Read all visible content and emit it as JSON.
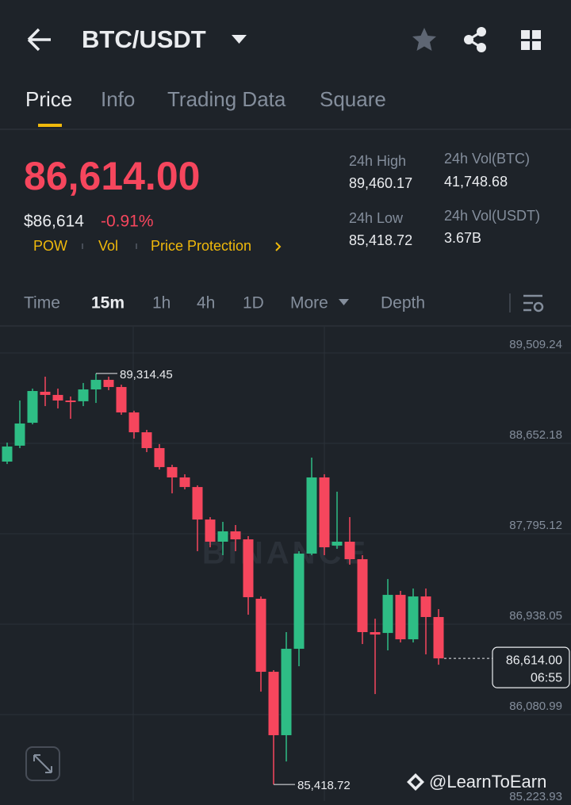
{
  "header": {
    "title": "BTC/USDT"
  },
  "tabs": [
    "Price",
    "Info",
    "Trading Data",
    "Square"
  ],
  "price": {
    "last": "86,614.00",
    "fiat": "$86,614",
    "change": "-0.91%",
    "tags": [
      "POW",
      "Vol",
      "Price Protection"
    ]
  },
  "stats": [
    {
      "label": "24h High",
      "value": "89,460.17"
    },
    {
      "label": "24h Vol(BTC)",
      "value": "41,748.68"
    },
    {
      "label": "24h Low",
      "value": "85,418.72"
    },
    {
      "label": "24h Vol(USDT)",
      "value": "3.67B"
    }
  ],
  "intervals": [
    "Time",
    "15m",
    "1h",
    "4h",
    "1D",
    "More",
    "Depth"
  ],
  "chart_data": {
    "type": "candlestick",
    "open": [
      88479,
      88630,
      88847,
      89141,
      89111,
      89058,
      89051,
      89163,
      89254,
      89186,
      88945,
      88757,
      88607,
      88427,
      88329,
      88238,
      87930,
      87720,
      87818,
      87742,
      87179,
      86487,
      85886,
      86705,
      87607,
      88329,
      87683,
      87720,
      87554,
      86863,
      86855,
      87216,
      86795,
      87201,
      87006
    ],
    "high": [
      88659,
      89058,
      89171,
      89284,
      89171,
      89096,
      89224,
      89314.45,
      89284,
      89208,
      88961,
      88780,
      88645,
      88449,
      88359,
      88254,
      87953,
      87908,
      87878,
      87773,
      87201,
      86502,
      86863,
      87630,
      88517,
      88359,
      88194,
      87953,
      87592,
      86990,
      87366,
      87254,
      87276,
      87276,
      87081
    ],
    "low": [
      88456,
      88607,
      88832,
      89005,
      88983,
      88885,
      89005,
      89035,
      89156,
      88923,
      88697,
      88569,
      88404,
      88178,
      88216,
      87630,
      87667,
      87592,
      87630,
      87028,
      86299,
      85418.72,
      85637,
      86540,
      87592,
      87592,
      87652,
      87502,
      86750,
      86276,
      86690,
      86765,
      86765,
      86652,
      86554
    ],
    "close": [
      88622,
      88840,
      89148,
      89111,
      89058,
      89043,
      89163,
      89254,
      89186,
      88945,
      88757,
      88607,
      88427,
      88329,
      88238,
      87930,
      87720,
      87818,
      87742,
      87194,
      86487,
      85886,
      86705,
      87607,
      88329,
      87667,
      87720,
      87554,
      86863,
      86840,
      87216,
      86795,
      87201,
      87006,
      86614
    ],
    "up_color": "#2ebd85",
    "down_color": "#f6465d",
    "ylim": [
      85262,
      89757
    ],
    "yticks": [
      {
        "value": 89509.24,
        "label": "89,509.24"
      },
      {
        "value": 88652.18,
        "label": "88,652.18"
      },
      {
        "value": 87795.12,
        "label": "87,795.12"
      },
      {
        "value": 86938.05,
        "label": "86,938.05"
      },
      {
        "value": 86080.99,
        "label": "86,080.99"
      },
      {
        "value": 85223.93,
        "label": "85,223.93"
      }
    ],
    "high_label": "89,314.45",
    "low_label": "85,418.72",
    "last_price": {
      "value": 86614.0,
      "label": "86,614.00"
    },
    "countdown": "06:55",
    "watermark": "BINANCE"
  },
  "footer": "@LearnToEarn"
}
